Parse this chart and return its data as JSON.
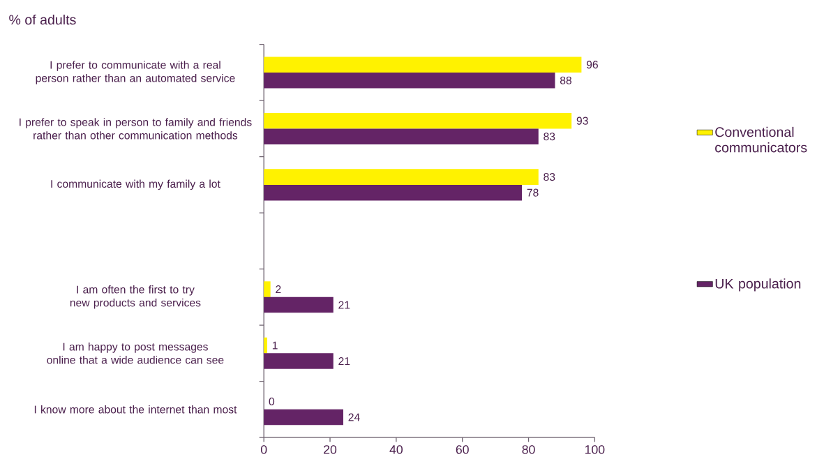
{
  "chart_data": {
    "type": "bar",
    "orientation": "horizontal",
    "title": "% of adults",
    "categories": [
      "I prefer to communicate with a real person rather than an automated service",
      "I prefer to speak  in person to family and friends rather than other communication methods",
      "I communicate with my family a lot",
      null,
      "I am often the first to try new products and services",
      "I am happy to post messages online that a wide audience can see",
      "I know more about the internet than most"
    ],
    "series": [
      {
        "name": "Conventional communicators",
        "color": "#fff200",
        "values": [
          96,
          93,
          83,
          null,
          2,
          1,
          0
        ]
      },
      {
        "name": "UK population",
        "color": "#642466",
        "values": [
          88,
          83,
          78,
          null,
          21,
          21,
          24
        ]
      }
    ],
    "xlim": [
      0,
      100
    ],
    "xticks": [
      0,
      20,
      40,
      60,
      80,
      100
    ],
    "data_labels": true,
    "legend": "right"
  }
}
